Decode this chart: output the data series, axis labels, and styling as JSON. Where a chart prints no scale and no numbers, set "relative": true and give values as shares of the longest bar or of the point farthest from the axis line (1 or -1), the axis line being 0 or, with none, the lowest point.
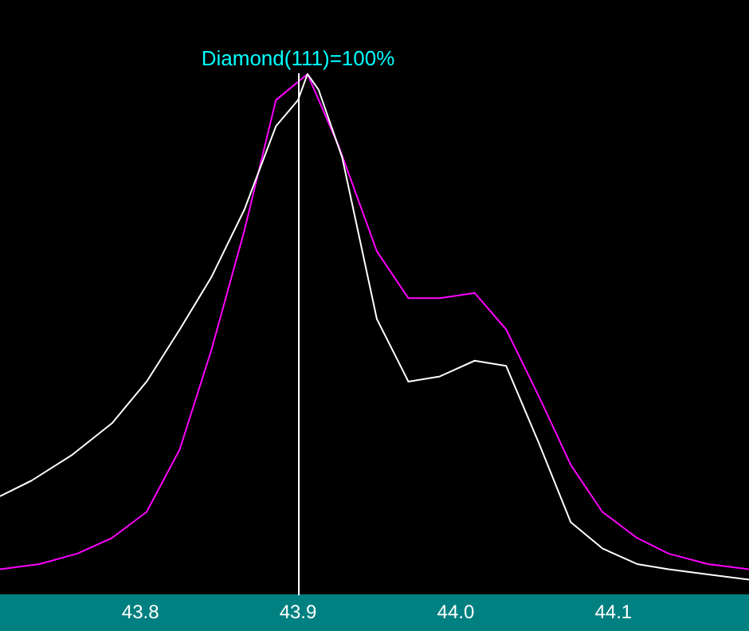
{
  "chart_data": {
    "type": "line",
    "relative": true,
    "xlim": [
      43.711,
      44.186
    ],
    "xticks": [
      43.8,
      43.9,
      {
        "value": 44,
        "label": "44.0"
      },
      44.1
    ],
    "grid": false,
    "legend": false,
    "marker": "none",
    "line_style": "solid",
    "series": [
      {
        "color": "#ffffff",
        "x": [
          43.711,
          43.731,
          43.757,
          43.782,
          43.804,
          43.825,
          43.845,
          43.866,
          43.886,
          43.9,
          43.906,
          43.913,
          43.928,
          43.95,
          43.97,
          43.99,
          44.012,
          44.032,
          44.053,
          44.073,
          44.093,
          44.115,
          44.135,
          44.16,
          44.186
        ],
        "values": [
          0.19,
          0.22,
          0.27,
          0.33,
          0.41,
          0.51,
          0.61,
          0.74,
          0.9,
          0.95,
          1.0,
          0.97,
          0.84,
          0.53,
          0.41,
          0.42,
          0.45,
          0.44,
          0.29,
          0.14,
          0.09,
          0.06,
          0.05,
          0.04,
          0.03
        ]
      },
      {
        "color": "#ff00ff",
        "x": [
          43.711,
          43.736,
          43.76,
          43.782,
          43.804,
          43.825,
          43.845,
          43.866,
          43.886,
          43.906,
          43.926,
          43.95,
          43.97,
          43.99,
          44.012,
          44.032,
          44.053,
          44.073,
          44.093,
          44.115,
          44.135,
          44.16,
          44.186
        ],
        "values": [
          0.05,
          0.06,
          0.08,
          0.11,
          0.16,
          0.28,
          0.47,
          0.7,
          0.95,
          1.0,
          0.86,
          0.66,
          0.57,
          0.57,
          0.58,
          0.51,
          0.38,
          0.25,
          0.16,
          0.11,
          0.08,
          0.06,
          0.05
        ]
      }
    ],
    "ref_lines": [
      {
        "axis": "x",
        "value": 43.9,
        "color": "#ffffff"
      }
    ],
    "annotations": [
      "Diamond(111)=100%"
    ]
  }
}
